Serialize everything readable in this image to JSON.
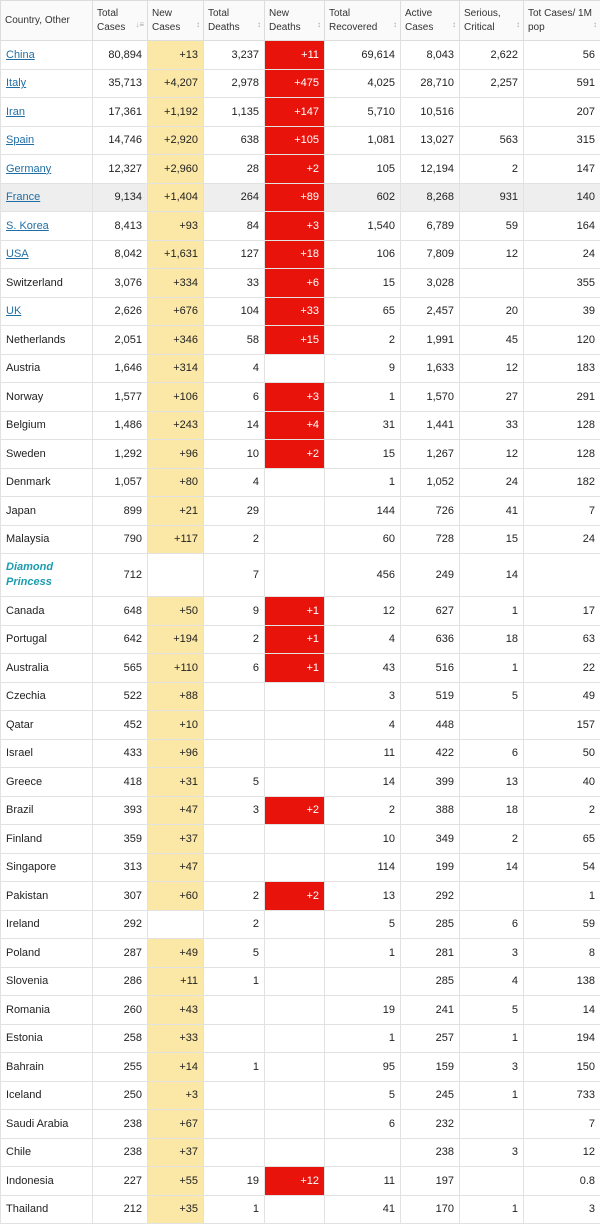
{
  "table": {
    "header": [
      "Country, Other",
      "Total Cases",
      "New Cases",
      "Total Deaths",
      "New Deaths",
      "Total Recovered",
      "Active Cases",
      "Serious, Critical",
      "Tot Cases/ 1M pop"
    ],
    "rows": [
      [
        "China",
        "80,894",
        "+13",
        "3,237",
        "+11",
        "69,614",
        "8,043",
        "2,622",
        "56"
      ],
      [
        "Italy",
        "35,713",
        "+4,207",
        "2,978",
        "+475",
        "4,025",
        "28,710",
        "2,257",
        "591"
      ],
      [
        "Iran",
        "17,361",
        "+1,192",
        "1,135",
        "+147",
        "5,710",
        "10,516",
        null,
        "207"
      ],
      [
        "Spain",
        "14,746",
        "+2,920",
        "638",
        "+105",
        "1,081",
        "13,027",
        "563",
        "315"
      ],
      [
        "Germany",
        "12,327",
        "+2,960",
        "28",
        "+2",
        "105",
        "12,194",
        "2",
        "147"
      ],
      [
        "France",
        "9,134",
        "+1,404",
        "264",
        "+89",
        "602",
        "8,268",
        "931",
        "140"
      ],
      [
        "S. Korea",
        "8,413",
        "+93",
        "84",
        "+3",
        "1,540",
        "6,789",
        "59",
        "164"
      ],
      [
        "USA",
        "8,042",
        "+1,631",
        "127",
        "+18",
        "106",
        "7,809",
        "12",
        "24"
      ],
      [
        "Switzerland",
        "3,076",
        "+334",
        "33",
        "+6",
        "15",
        "3,028",
        null,
        "355"
      ],
      [
        "UK",
        "2,626",
        "+676",
        "104",
        "+33",
        "65",
        "2,457",
        "20",
        "39"
      ],
      [
        "Netherlands",
        "2,051",
        "+346",
        "58",
        "+15",
        "2",
        "1,991",
        "45",
        "120"
      ],
      [
        "Austria",
        "1,646",
        "+314",
        "4",
        null,
        "9",
        "1,633",
        "12",
        "183"
      ],
      [
        "Norway",
        "1,577",
        "+106",
        "6",
        "+3",
        "1",
        "1,570",
        "27",
        "291"
      ],
      [
        "Belgium",
        "1,486",
        "+243",
        "14",
        "+4",
        "31",
        "1,441",
        "33",
        "128"
      ],
      [
        "Sweden",
        "1,292",
        "+96",
        "10",
        "+2",
        "15",
        "1,267",
        "12",
        "128"
      ],
      [
        "Denmark",
        "1,057",
        "+80",
        "4",
        null,
        "1",
        "1,052",
        "24",
        "182"
      ],
      [
        "Japan",
        "899",
        "+21",
        "29",
        null,
        "144",
        "726",
        "41",
        "7"
      ],
      [
        "Malaysia",
        "790",
        "+117",
        "2",
        null,
        "60",
        "728",
        "15",
        "24"
      ],
      [
        "Diamond Princess",
        "712",
        null,
        "7",
        null,
        "456",
        "249",
        "14",
        null
      ],
      [
        "Canada",
        "648",
        "+50",
        "9",
        "+1",
        "12",
        "627",
        "1",
        "17"
      ],
      [
        "Portugal",
        "642",
        "+194",
        "2",
        "+1",
        "4",
        "636",
        "18",
        "63"
      ],
      [
        "Australia",
        "565",
        "+110",
        "6",
        "+1",
        "43",
        "516",
        "1",
        "22"
      ],
      [
        "Czechia",
        "522",
        "+88",
        null,
        null,
        "3",
        "519",
        "5",
        "49"
      ],
      [
        "Qatar",
        "452",
        "+10",
        null,
        null,
        "4",
        "448",
        null,
        "157"
      ],
      [
        "Israel",
        "433",
        "+96",
        null,
        null,
        "11",
        "422",
        "6",
        "50"
      ],
      [
        "Greece",
        "418",
        "+31",
        "5",
        null,
        "14",
        "399",
        "13",
        "40"
      ],
      [
        "Brazil",
        "393",
        "+47",
        "3",
        "+2",
        "2",
        "388",
        "18",
        "2"
      ],
      [
        "Finland",
        "359",
        "+37",
        null,
        null,
        "10",
        "349",
        "2",
        "65"
      ],
      [
        "Singapore",
        "313",
        "+47",
        null,
        null,
        "114",
        "199",
        "14",
        "54"
      ],
      [
        "Pakistan",
        "307",
        "+60",
        "2",
        "+2",
        "13",
        "292",
        null,
        "1"
      ],
      [
        "Ireland",
        "292",
        null,
        "2",
        null,
        "5",
        "285",
        "6",
        "59"
      ],
      [
        "Poland",
        "287",
        "+49",
        "5",
        null,
        "1",
        "281",
        "3",
        "8"
      ],
      [
        "Slovenia",
        "286",
        "+11",
        "1",
        null,
        null,
        "285",
        "4",
        "138"
      ],
      [
        "Romania",
        "260",
        "+43",
        null,
        null,
        "19",
        "241",
        "5",
        "14"
      ],
      [
        "Estonia",
        "258",
        "+33",
        null,
        null,
        "1",
        "257",
        "1",
        "194"
      ],
      [
        "Bahrain",
        "255",
        "+14",
        "1",
        null,
        "95",
        "159",
        "3",
        "150"
      ],
      [
        "Iceland",
        "250",
        "+3",
        null,
        null,
        "5",
        "245",
        "1",
        "733"
      ],
      [
        "Saudi Arabia",
        "238",
        "+67",
        null,
        null,
        "6",
        "232",
        null,
        "7"
      ],
      [
        "Chile",
        "238",
        "+37",
        null,
        null,
        null,
        "238",
        "3",
        "12"
      ],
      [
        "Indonesia",
        "227",
        "+55",
        "19",
        "+12",
        "11",
        "197",
        null,
        "0.8"
      ],
      [
        "Thailand",
        "212",
        "+35",
        "1",
        null,
        "41",
        "170",
        "1",
        "3"
      ]
    ]
  }
}
